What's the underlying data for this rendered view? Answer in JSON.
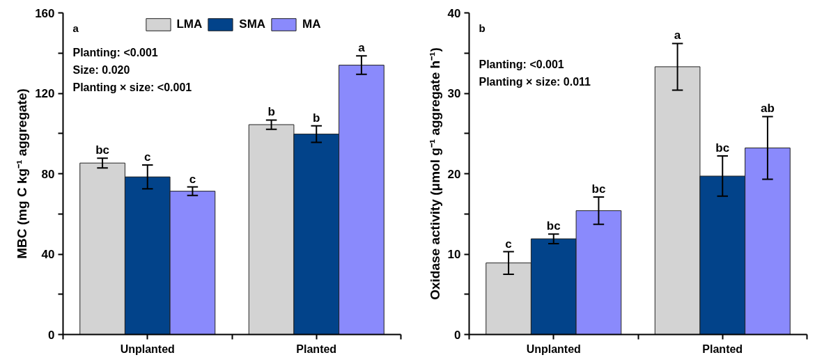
{
  "chart_data": [
    {
      "type": "bar",
      "title": "a",
      "ylabel": "MBC (mg C kg⁻¹ aggregate)",
      "categories": [
        "Unplanted",
        "Planted"
      ],
      "series": [
        {
          "name": "LMA",
          "color": "#d3d3d3",
          "values": [
            85.3,
            104.4
          ],
          "errors": [
            2.4,
            2.3
          ],
          "value_labels": [
            "bc",
            "b"
          ]
        },
        {
          "name": "SMA",
          "color": "#02438a",
          "values": [
            78.4,
            99.7
          ],
          "errors": [
            5.9,
            4.1
          ],
          "value_labels": [
            "c",
            "b"
          ]
        },
        {
          "name": "MA",
          "color": "#8a8afc",
          "values": [
            71.3,
            134.0
          ],
          "errors": [
            2.1,
            4.6
          ],
          "value_labels": [
            "c",
            "a"
          ]
        }
      ],
      "ylim": [
        0,
        160
      ],
      "yticks": [
        0,
        {
          "value": 20,
          "label": null
        },
        40,
        {
          "value": 60,
          "label": null
        },
        80,
        {
          "value": 100,
          "label": null
        },
        120,
        {
          "value": 140,
          "label": null
        },
        160
      ],
      "annotations": [
        "Planting: <0.001",
        "Size: 0.020",
        "Planting × size: <0.001"
      ],
      "legend": "top",
      "grid": false
    },
    {
      "type": "bar",
      "title": "b",
      "ylabel": "Oxidase activity (μmol g⁻¹ aggregate h⁻¹)",
      "categories": [
        "Unplanted",
        "Planted"
      ],
      "series": [
        {
          "color": "#d3d3d3",
          "values": [
            8.9,
            33.3
          ],
          "errors": [
            1.4,
            2.9
          ],
          "value_labels": [
            "c",
            "a"
          ]
        },
        {
          "color": "#02438a",
          "values": [
            11.9,
            19.7
          ],
          "errors": [
            0.6,
            2.5
          ],
          "value_labels": [
            "bc",
            "bc"
          ]
        },
        {
          "color": "#8a8afc",
          "values": [
            15.4,
            23.2
          ],
          "errors": [
            1.7,
            3.9
          ],
          "value_labels": [
            "bc",
            "ab"
          ]
        }
      ],
      "ylim": [
        0,
        40
      ],
      "yticks": [
        0,
        {
          "value": 5,
          "label": null
        },
        10,
        {
          "value": 15,
          "label": null
        },
        20,
        {
          "value": 25,
          "label": null
        },
        30,
        {
          "value": 35,
          "label": null
        },
        40
      ],
      "annotations": [
        "Planting: <0.001",
        "Planting × size: 0.011"
      ],
      "grid": false
    }
  ]
}
